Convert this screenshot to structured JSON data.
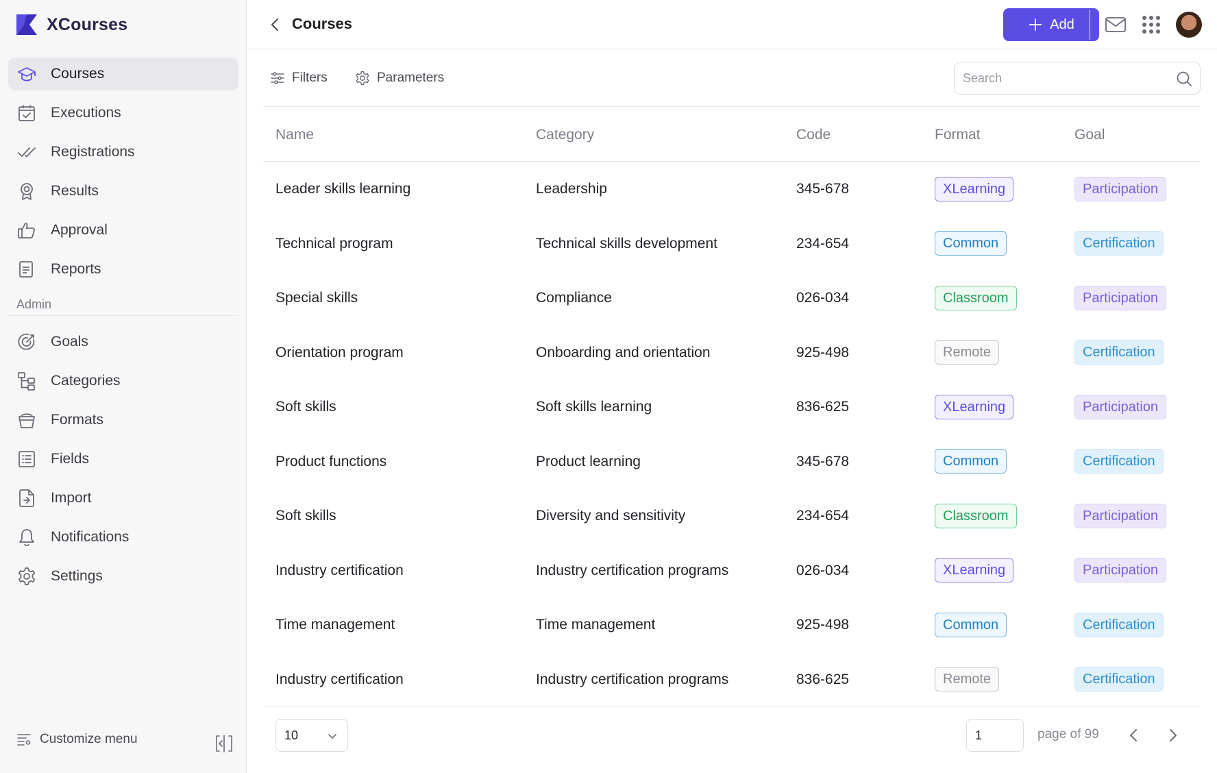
{
  "brand": {
    "name": "XCourses"
  },
  "sidebar": {
    "items": [
      {
        "label": "Courses",
        "icon": "graduation-cap-icon",
        "active": true
      },
      {
        "label": "Executions",
        "icon": "calendar-check-icon"
      },
      {
        "label": "Registrations",
        "icon": "double-check-icon"
      },
      {
        "label": "Results",
        "icon": "award-icon"
      },
      {
        "label": "Approval",
        "icon": "thumbs-up-icon"
      },
      {
        "label": "Reports",
        "icon": "document-icon"
      }
    ],
    "admin_label": "Admin",
    "admin_items": [
      {
        "label": "Goals",
        "icon": "target-icon"
      },
      {
        "label": "Categories",
        "icon": "hierarchy-icon"
      },
      {
        "label": "Formats",
        "icon": "bucket-icon"
      },
      {
        "label": "Fields",
        "icon": "list-icon"
      },
      {
        "label": "Import",
        "icon": "file-import-icon"
      },
      {
        "label": "Notifications",
        "icon": "bell-icon"
      },
      {
        "label": "Settings",
        "icon": "gear-icon"
      }
    ],
    "customize_label": "Customize menu"
  },
  "header": {
    "title": "Courses",
    "add_label": "Add"
  },
  "toolbar": {
    "filters_label": "Filters",
    "parameters_label": "Parameters",
    "search_placeholder": "Search"
  },
  "table": {
    "columns": [
      "Name",
      "Category",
      "Code",
      "Format",
      "Goal"
    ],
    "rows": [
      {
        "name": "Leader skills learning",
        "category": "Leadership",
        "code": "345-678",
        "format": "XLearning",
        "goal": "Participation"
      },
      {
        "name": "Technical program",
        "category": "Technical skills development",
        "code": "234-654",
        "format": "Common",
        "goal": "Certification"
      },
      {
        "name": "Special skills",
        "category": "Compliance",
        "code": "026-034",
        "format": "Classroom",
        "goal": "Participation"
      },
      {
        "name": "Orientation program",
        "category": "Onboarding and orientation",
        "code": "925-498",
        "format": "Remote",
        "goal": "Certification"
      },
      {
        "name": "Soft skills",
        "category": "Soft skills learning",
        "code": "836-625",
        "format": "XLearning",
        "goal": "Participation"
      },
      {
        "name": "Product functions",
        "category": "Product learning",
        "code": "345-678",
        "format": "Common",
        "goal": "Certification"
      },
      {
        "name": "Soft skills",
        "category": "Diversity and sensitivity",
        "code": "234-654",
        "format": "Classroom",
        "goal": "Participation"
      },
      {
        "name": "Industry certification",
        "category": "Industry certification programs",
        "code": "026-034",
        "format": "XLearning",
        "goal": "Participation"
      },
      {
        "name": "Time management",
        "category": "Time management",
        "code": "925-498",
        "format": "Common",
        "goal": "Certification"
      },
      {
        "name": "Industry certification",
        "category": "Industry certification programs",
        "code": "836-625",
        "format": "Remote",
        "goal": "Certification"
      }
    ]
  },
  "badge_colors": {
    "XLearning": {
      "text": "#5b4de4",
      "bg": "#f3f1ff",
      "border": "#8f84ee"
    },
    "Common": {
      "text": "#1f7fc4",
      "bg": "#eef7fd",
      "border": "#6fb3e3"
    },
    "Classroom": {
      "text": "#21a05a",
      "bg": "#eefaf2",
      "border": "#6fcf95"
    },
    "Remote": {
      "text": "#8a8a93",
      "bg": "#fafafa",
      "border": "#c5c5cc"
    },
    "Participation": {
      "text": "#7b5fd6",
      "bg": "#ece6fb",
      "border": "#d9cff7"
    },
    "Certification": {
      "text": "#2b8fd0",
      "bg": "#e1f1fc",
      "border": "#cbe6f8"
    }
  },
  "pagination": {
    "per_page": "10",
    "page": "1",
    "page_of": "page of 99"
  },
  "colors": {
    "accent": "#5b4de4"
  }
}
